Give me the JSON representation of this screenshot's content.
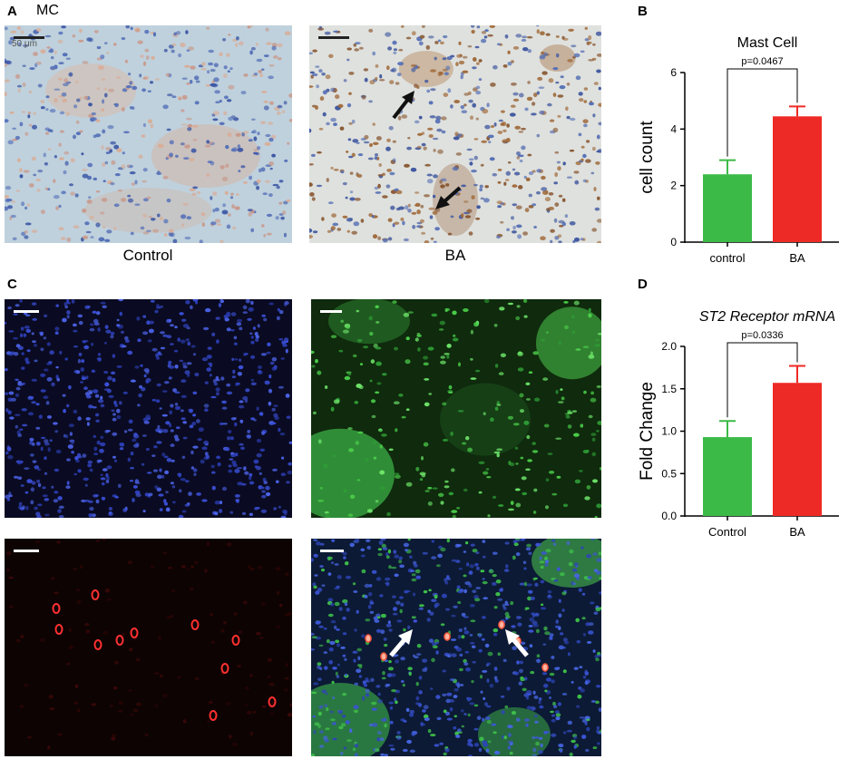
{
  "panels": {
    "a": "A",
    "b": "B",
    "c": "C",
    "d": "D"
  },
  "panel_a": {
    "stain_label": "MC",
    "scale_label": "50 μm",
    "captions": [
      "Control",
      "BA"
    ]
  },
  "colors": {
    "control_bar": "#3cba48",
    "ba_bar": "#ee2a26",
    "ihc_control_bg": "#bfd1dd",
    "ihc_ba_bg": "#dfe1de",
    "dapi_bg": "#0a0b22",
    "green_bg": "#0f2a0d",
    "red_bg": "#0d0303",
    "merge_bg": "#0c1a35"
  },
  "chart_data": [
    {
      "type": "bar",
      "title": "Mast Cell",
      "title_italic": false,
      "categories": [
        "control",
        "BA"
      ],
      "values": [
        2.4,
        4.45
      ],
      "errors": [
        0.5,
        0.35
      ],
      "ylabel": "cell count",
      "ylim": [
        0,
        6
      ],
      "yticks": [
        "0",
        "2",
        "4",
        "6"
      ],
      "annotation": "p=0.0467",
      "grid": false
    },
    {
      "type": "bar",
      "title": "ST2 Receptor mRNA",
      "title_italic": true,
      "categories": [
        "Control",
        "BA"
      ],
      "values": [
        0.93,
        1.57
      ],
      "errors": [
        0.19,
        0.2
      ],
      "ylabel": "Fold Change",
      "ylim": [
        0,
        2.0
      ],
      "yticks": [
        "0.0",
        "0.5",
        "1.0",
        "1.5",
        "2.0"
      ],
      "annotation": "p=0.0336",
      "grid": false
    }
  ]
}
